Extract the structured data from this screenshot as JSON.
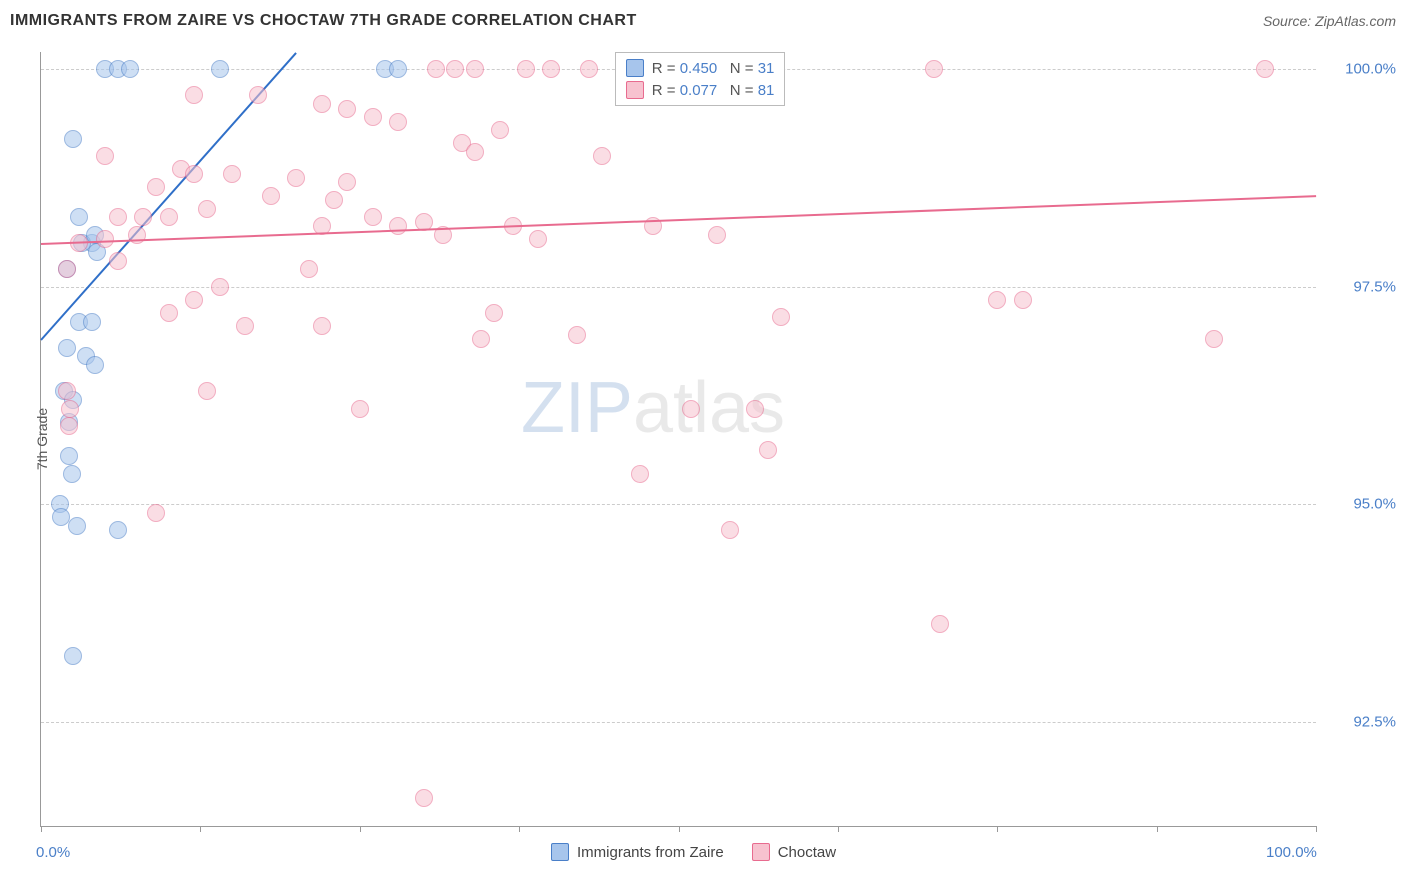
{
  "title": "IMMIGRANTS FROM ZAIRE VS CHOCTAW 7TH GRADE CORRELATION CHART",
  "source_label": "Source: ZipAtlas.com",
  "watermark": {
    "part1": "ZIP",
    "part2": "atlas"
  },
  "y_axis": {
    "title": "7th Grade"
  },
  "chart": {
    "type": "scatter",
    "xlim": [
      0,
      100
    ],
    "ylim": [
      91.3,
      100.2
    ],
    "x_ticks": [
      0,
      12.5,
      25,
      37.5,
      50,
      62.5,
      75,
      87.5,
      100
    ],
    "x_tick_labels": {
      "0": "0.0%",
      "100": "100.0%"
    },
    "y_gridlines": [
      92.5,
      95.0,
      97.5,
      100.0
    ],
    "y_tick_labels": [
      "92.5%",
      "95.0%",
      "97.5%",
      "100.0%"
    ],
    "background_color": "#ffffff",
    "grid_color": "#cccccc",
    "axis_color": "#999999",
    "tick_label_color": "#4a7fc8",
    "marker_radius": 9,
    "marker_opacity": 0.55,
    "series": [
      {
        "name": "Immigrants from Zaire",
        "fill_color": "#a7c5ec",
        "stroke_color": "#4a7fc8",
        "swatch_fill": "#a7c5ec",
        "swatch_border": "#4a7fc8",
        "R_label": "R = ",
        "R_value": "0.450",
        "N_label": "N = ",
        "N_value": "31",
        "trendline": {
          "x1": 0,
          "y1": 96.9,
          "x2": 20,
          "y2": 100.2,
          "color": "#2f6fc8",
          "width": 2
        },
        "points": [
          [
            5,
            100.0
          ],
          [
            6,
            100.0
          ],
          [
            7,
            100.0
          ],
          [
            14,
            100.0
          ],
          [
            27,
            100.0
          ],
          [
            28,
            100.0
          ],
          [
            2.5,
            99.2
          ],
          [
            3,
            98.3
          ],
          [
            4,
            98.0
          ],
          [
            3.2,
            98.0
          ],
          [
            4.2,
            98.1
          ],
          [
            4.4,
            97.9
          ],
          [
            2,
            97.7
          ],
          [
            3,
            97.1
          ],
          [
            4,
            97.1
          ],
          [
            2,
            96.8
          ],
          [
            3.5,
            96.7
          ],
          [
            4.2,
            96.6
          ],
          [
            1.8,
            96.3
          ],
          [
            2.5,
            96.2
          ],
          [
            2.2,
            95.95
          ],
          [
            2.2,
            95.55
          ],
          [
            2.4,
            95.35
          ],
          [
            6,
            94.7
          ],
          [
            1.5,
            95.0
          ],
          [
            1.6,
            94.85
          ],
          [
            2.5,
            93.25
          ],
          [
            2.8,
            94.75
          ]
        ]
      },
      {
        "name": "Choctaw",
        "fill_color": "#f7c2cf",
        "stroke_color": "#e86b8f",
        "swatch_fill": "#f7c2cf",
        "swatch_border": "#e86b8f",
        "R_label": "R = ",
        "R_value": "0.077",
        "N_label": "N = ",
        "N_value": "81",
        "trendline": {
          "x1": 0,
          "y1": 98.0,
          "x2": 100,
          "y2": 98.55,
          "color": "#e86b8f",
          "width": 2
        },
        "points": [
          [
            31,
            100.0
          ],
          [
            32.5,
            100.0
          ],
          [
            34,
            100.0
          ],
          [
            38,
            100.0
          ],
          [
            40,
            100.0
          ],
          [
            43,
            100.0
          ],
          [
            46,
            100.0
          ],
          [
            70,
            100.0
          ],
          [
            96,
            100.0
          ],
          [
            12,
            99.7
          ],
          [
            17,
            99.7
          ],
          [
            22,
            99.6
          ],
          [
            24,
            99.55
          ],
          [
            26,
            99.45
          ],
          [
            28,
            99.4
          ],
          [
            33,
            99.15
          ],
          [
            36,
            99.3
          ],
          [
            34,
            99.05
          ],
          [
            44,
            99.0
          ],
          [
            5,
            99.0
          ],
          [
            6,
            98.3
          ],
          [
            7.5,
            98.1
          ],
          [
            8,
            98.3
          ],
          [
            9,
            98.65
          ],
          [
            10,
            98.3
          ],
          [
            11,
            98.85
          ],
          [
            12,
            98.8
          ],
          [
            13,
            98.4
          ],
          [
            15,
            98.8
          ],
          [
            18,
            98.55
          ],
          [
            20,
            98.75
          ],
          [
            22,
            98.2
          ],
          [
            23,
            98.5
          ],
          [
            24,
            98.7
          ],
          [
            26,
            98.3
          ],
          [
            28,
            98.2
          ],
          [
            30,
            98.25
          ],
          [
            31.5,
            98.1
          ],
          [
            37,
            98.2
          ],
          [
            39,
            98.05
          ],
          [
            2,
            97.7
          ],
          [
            3,
            98.0
          ],
          [
            5,
            98.05
          ],
          [
            6,
            97.8
          ],
          [
            21,
            97.7
          ],
          [
            75,
            97.35
          ],
          [
            77,
            97.35
          ],
          [
            92,
            96.9
          ],
          [
            10,
            97.2
          ],
          [
            12,
            97.35
          ],
          [
            14,
            97.5
          ],
          [
            16,
            97.05
          ],
          [
            22,
            97.05
          ],
          [
            34.5,
            96.9
          ],
          [
            35.5,
            97.2
          ],
          [
            42,
            96.95
          ],
          [
            13,
            96.3
          ],
          [
            25,
            96.1
          ],
          [
            51,
            96.1
          ],
          [
            56,
            96.1
          ],
          [
            58,
            97.15
          ],
          [
            53,
            98.1
          ],
          [
            2,
            96.3
          ],
          [
            2.3,
            96.1
          ],
          [
            2.2,
            95.9
          ],
          [
            9,
            94.9
          ],
          [
            30,
            91.62
          ],
          [
            47,
            95.35
          ],
          [
            57,
            95.62
          ],
          [
            54,
            94.7
          ],
          [
            70.5,
            93.62
          ],
          [
            48,
            98.2
          ]
        ]
      }
    ]
  },
  "legend_bottom": [
    {
      "label": "Immigrants from Zaire",
      "fill": "#a7c5ec",
      "border": "#4a7fc8"
    },
    {
      "label": "Choctaw",
      "fill": "#f7c2cf",
      "border": "#e86b8f"
    }
  ],
  "colors": {
    "stat_label": "#555555",
    "stat_value": "#4a7fc8"
  }
}
